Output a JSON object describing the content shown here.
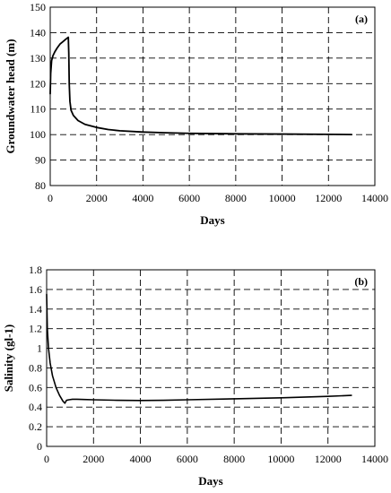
{
  "chart_data": [
    {
      "type": "line",
      "panel_label": "(a)",
      "xlabel": "Days",
      "ylabel": "Groundwater head (m)",
      "xlim": [
        0,
        14000
      ],
      "ylim": [
        80,
        150
      ],
      "xticks": [
        0,
        2000,
        4000,
        6000,
        8000,
        10000,
        12000,
        14000
      ],
      "yticks": [
        80,
        90,
        100,
        110,
        120,
        130,
        140,
        150
      ],
      "grid": true,
      "series": [
        {
          "x": [
            0,
            20,
            60,
            120,
            200,
            300,
            420,
            550,
            680,
            780,
            800,
            820,
            850,
            900,
            1000,
            1200,
            1500,
            2000,
            2500,
            3000,
            4000,
            5000,
            6000,
            8000,
            10000,
            12000,
            13000
          ],
          "y": [
            116,
            124,
            129,
            131,
            132.5,
            134,
            135.5,
            136.5,
            137.5,
            138.2,
            132,
            120,
            113,
            109.5,
            107.5,
            105.5,
            104,
            102.8,
            102,
            101.5,
            101,
            100.7,
            100.5,
            100.3,
            100.2,
            100.1,
            100
          ]
        }
      ]
    },
    {
      "type": "line",
      "panel_label": "(b)",
      "xlabel": "Days",
      "ylabel": "Salinity (gl-1)",
      "xlim": [
        0,
        14000
      ],
      "ylim": [
        0,
        1.8
      ],
      "xticks": [
        0,
        2000,
        4000,
        6000,
        8000,
        10000,
        12000,
        14000
      ],
      "yticks": [
        0,
        0.2,
        0.4,
        0.6,
        0.8,
        1,
        1.2,
        1.4,
        1.6,
        1.8
      ],
      "grid": true,
      "series": [
        {
          "x": [
            0,
            30,
            80,
            150,
            250,
            400,
            550,
            700,
            780,
            800,
            850,
            950,
            1100,
            1300,
            1600,
            2000,
            3000,
            4000,
            5000,
            6000,
            8000,
            10000,
            12000,
            13000
          ],
          "y": [
            1.55,
            1.2,
            1.0,
            0.85,
            0.72,
            0.6,
            0.52,
            0.46,
            0.44,
            0.45,
            0.47,
            0.475,
            0.48,
            0.48,
            0.478,
            0.475,
            0.47,
            0.468,
            0.47,
            0.475,
            0.485,
            0.495,
            0.51,
            0.52
          ]
        }
      ]
    }
  ]
}
